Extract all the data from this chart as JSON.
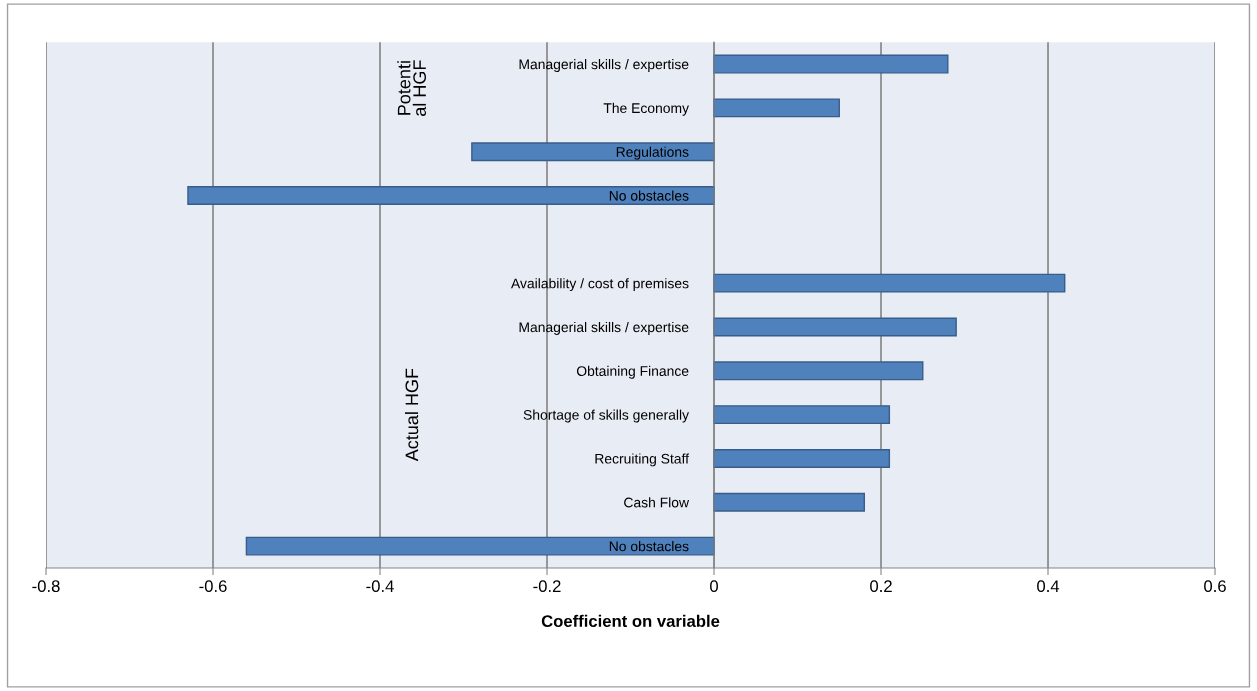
{
  "chart_data": {
    "type": "bar",
    "orientation": "horizontal",
    "xlabel": "Coefficient on variable",
    "categories": [
      "Managerial skills / expertise",
      "The Economy",
      "Regulations",
      "No obstacles",
      null,
      "Availability / cost of premises",
      "Managerial skills / expertise",
      "Obtaining Finance",
      "Shortage of skills generally",
      "Recruiting Staff",
      "Cash Flow",
      "No obstacles"
    ],
    "values": [
      0.28,
      0.15,
      -0.29,
      -0.63,
      null,
      0.42,
      0.29,
      0.25,
      0.21,
      0.21,
      0.18,
      -0.56
    ],
    "color": "#4f81bd",
    "xlim": [
      -0.8,
      0.6
    ],
    "xticks": [
      -0.8,
      -0.6,
      -0.4,
      -0.2,
      0,
      0.2,
      0.4,
      0.6
    ],
    "grid": "x",
    "annotations": [
      "Potenti\nal HGF",
      "Actual HGF"
    ]
  }
}
